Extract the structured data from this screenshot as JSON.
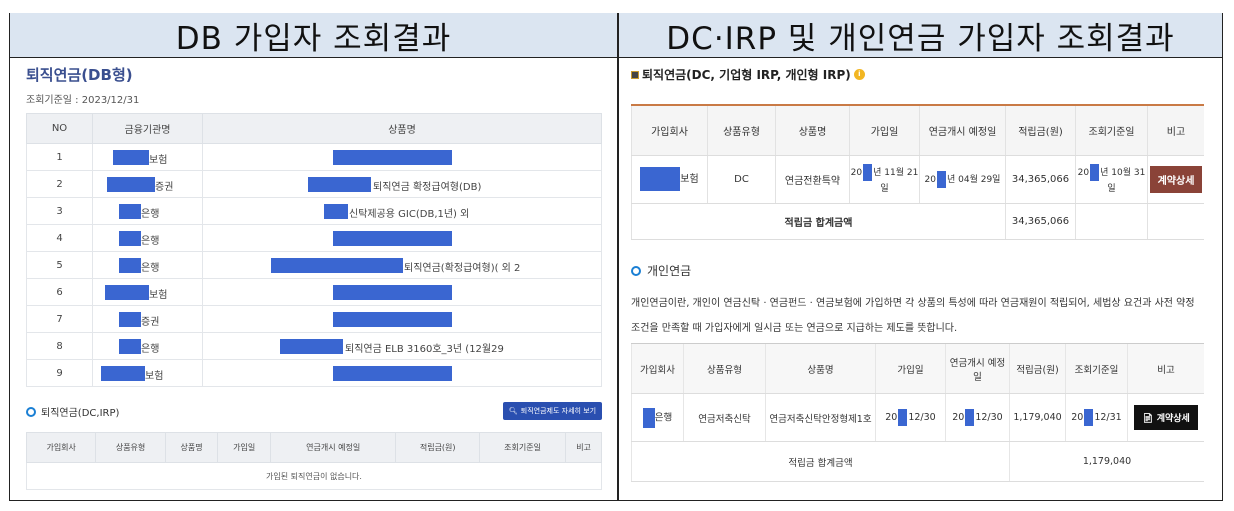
{
  "headers": {
    "left": "DB 가입자 조회결과",
    "right": "DC·IRP 및 개인연금 가입자 조회결과"
  },
  "left": {
    "title": "퇴직연금(DB형)",
    "date": "조회기준일 : 2023/12/31",
    "columns": [
      "NO",
      "금융기관명",
      "상품명"
    ],
    "rows": [
      {
        "no": "1",
        "org": "보험",
        "product": ""
      },
      {
        "no": "2",
        "org": "증권",
        "product": "퇴직연금 확정급여형(DB)"
      },
      {
        "no": "3",
        "org": "은행",
        "product": "신탁제공용 GIC(DB,1년) 외"
      },
      {
        "no": "4",
        "org": "은행",
        "product": ""
      },
      {
        "no": "5",
        "org": "은행",
        "product": "퇴직연금(확정급여형)( 외 2"
      },
      {
        "no": "6",
        "org": "보험",
        "product": ""
      },
      {
        "no": "7",
        "org": "증권",
        "product": ""
      },
      {
        "no": "8",
        "org": "은행",
        "product": "퇴직연금 ELB 3160호_3년 (12월29"
      },
      {
        "no": "9",
        "org": "보험",
        "product": ""
      }
    ],
    "dc_title": "퇴직연금(DC,IRP)",
    "dc_button": "퇴직연금제도 자세히 보기",
    "dc_columns": [
      "가입회사",
      "상품유형",
      "상품명",
      "가입일",
      "연금개시 예정일",
      "적립금(원)",
      "조회기준일",
      "비고"
    ],
    "dc_empty": "가입된 퇴직연금이 없습니다."
  },
  "right": {
    "title": "퇴직연금(DC, 기업형 IRP, 개인형 IRP)",
    "columns": [
      "가입회사",
      "상품유형",
      "상품명",
      "가입일",
      "연금개시 예정일",
      "적립금(원)",
      "조회기준일",
      "비고"
    ],
    "row": {
      "company": "보험",
      "type": "DC",
      "product": "연금전환특약",
      "join_a": "20",
      "join_b": "년 11월 21일",
      "start_a": "20",
      "start_b": "년 04월 29일",
      "amount": "34,365,066",
      "ref_a": "20",
      "ref_b": "년 10월 31일",
      "action": "계약상세"
    },
    "sum_label": "적립금 합계금액",
    "sum_value": "34,365,066",
    "personal_title": "개인연금",
    "personal_desc": "개인연금이란, 개인이 연금신탁 · 연금펀드 · 연금보험에 가입하면 각 상품의 특성에 따라 연금재원이 적립되어, 세법상 요건과 사전 약정 조건을 만족할 때 가입자에게 일시금 또는 연금으로 지급하는 제도를 뜻합니다.",
    "columns2": [
      "가입회사",
      "상품유형",
      "상품명",
      "가입일",
      "연금개시 예정일",
      "적립금(원)",
      "조회기준일",
      "비고"
    ],
    "row2": {
      "company": "은행",
      "type": "연금저축신탁",
      "product": "연금저축신탁안정형제1호",
      "join_a": "20",
      "join_b": "12/30",
      "start_a": "20",
      "start_b": "12/30",
      "amount": "1,179,040",
      "ref_a": "20",
      "ref_b": "12/31",
      "action": "계약상세"
    },
    "sum2_label": "적립금 합계금액",
    "sum2_value": "1,179,040"
  },
  "colors": {
    "mask": "#3a66d1",
    "header_bg": "#dbe5f1",
    "accent_red": "#c94a1a",
    "btn_brown": "#8a4338"
  }
}
